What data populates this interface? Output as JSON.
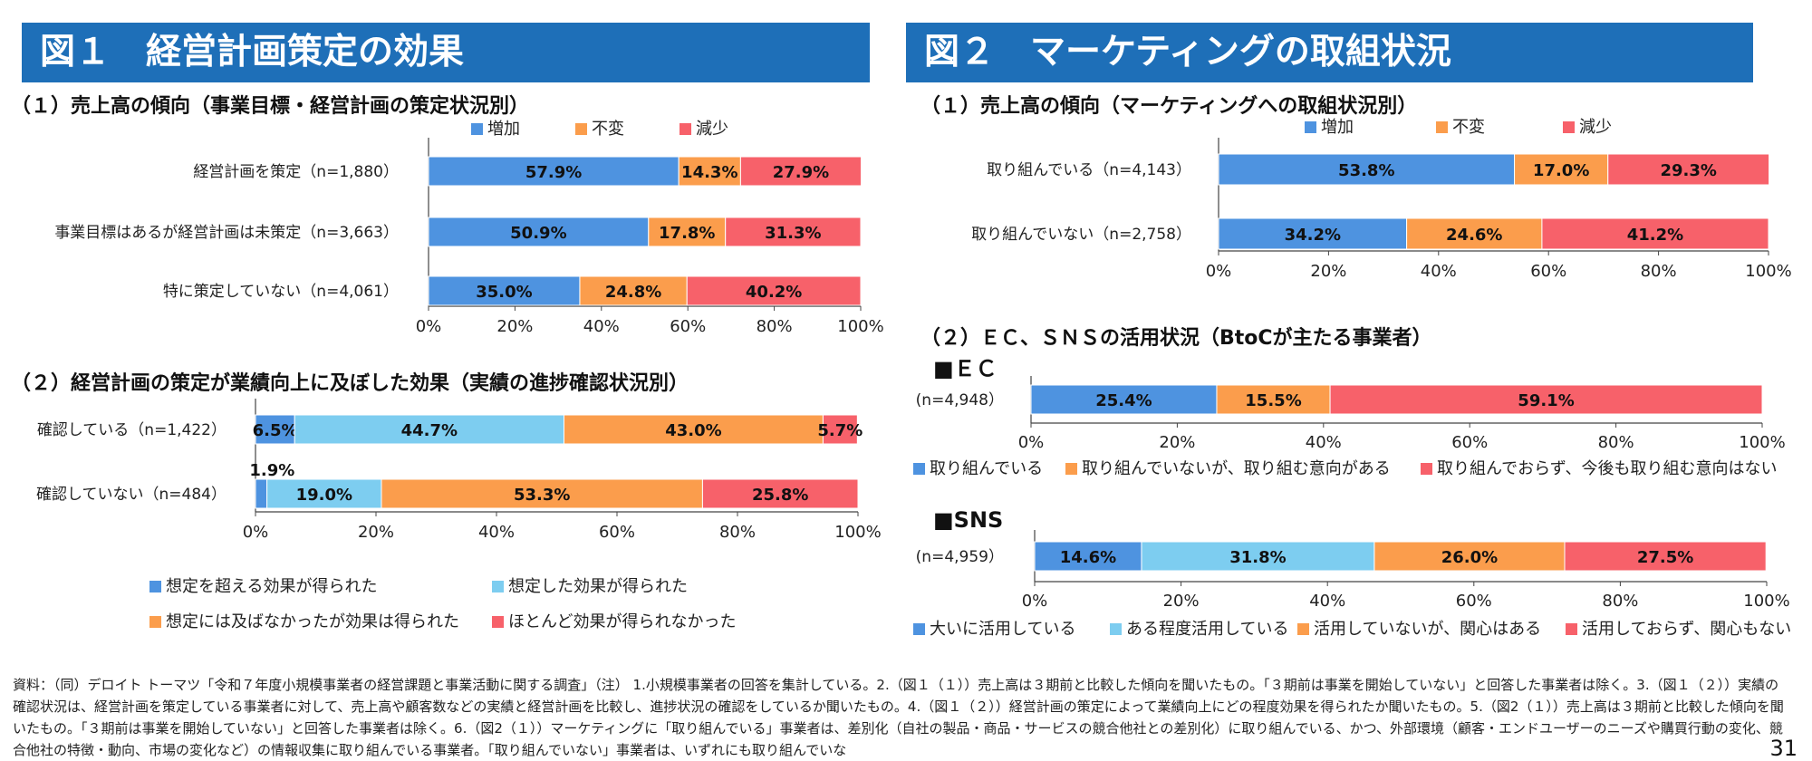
{
  "fig1": {
    "title": "図１　経営計画策定の効果",
    "sub1": "（１）売上高の傾向（事業目標・経営計画の策定状況別）",
    "sub2": "（２）経営計画の策定が業績向上に及ぼした効果（実績の進捗確認状況別）"
  },
  "fig2": {
    "title": "図２　マーケティングの取組状況",
    "sub1": "（１）売上高の傾向（マーケティングへの取組状況別）",
    "sub2": "（２）ＥＣ、ＳＮＳの活用状況（BtoCが主たる事業者）",
    "ec_heading": "■ＥＣ",
    "sns_heading": "■SNS"
  },
  "footer": {
    "text": "資料：（同）デロイト トーマツ「令和７年度小規模事業者の経営課題と事業活動に関する調査」（注） 1.小規模事業者の回答を集計している。2.（図１（１））売上高は３期前と比較した傾向を聞いたもの。「３期前は事業を開始していない」と回答した事業者は除く。3.（図１（２））実績の確認状況は、経営計画を策定している事業者に対して、売上高や顧客数などの実績と経営計画を比較し、進捗状況の確認をしているか聞いたもの。4.（図１（２））経営計画の策定によって業績向上にどの程度効果を得られたか聞いたもの。5.（図2（１））売上高は３期前と比較した傾向を聞いたもの。「３期前は事業を開始していない」と回答した事業者は除く。6.（図2（１））マーケティングに「取り組んでいる」事業者は、差別化（自社の製品・商品・サービスの競合他社との差別化）に取り組んでいる、かつ、外部環境（顧客・エンドユーザーのニーズや購買行動の変化、競合他社の特徴・動向、市場の変化など）の情報収集に取り組んでいる事業者。「取り組んでいない」事業者は、いずれにも取り組んでいな",
    "page": "31"
  },
  "colors": {
    "banner": "#1e6fb8",
    "blue": "#4e93e0",
    "lightblue": "#7dcdf0",
    "orange": "#fb9d4c",
    "red": "#f7616a"
  },
  "chart_data": [
    {
      "id": "fig1-1",
      "type": "bar",
      "orientation": "horizontal-stacked",
      "categories": [
        "経営計画を策定（n=1,880）",
        "事業目標はあるが経営計画は未策定（n=3,663）",
        "特に策定していない（n=4,061）"
      ],
      "series": [
        {
          "name": "増加",
          "color": "#4e93e0",
          "values": [
            57.9,
            50.9,
            35.0
          ]
        },
        {
          "name": "不変",
          "color": "#fb9d4c",
          "values": [
            14.3,
            17.8,
            24.8
          ]
        },
        {
          "name": "減少",
          "color": "#f7616a",
          "values": [
            27.9,
            31.3,
            40.2
          ]
        }
      ],
      "xlim": [
        0,
        100
      ],
      "ticks": [
        "0%",
        "20%",
        "40%",
        "60%",
        "80%",
        "100%"
      ],
      "legend_position": "top"
    },
    {
      "id": "fig1-2",
      "type": "bar",
      "orientation": "horizontal-stacked",
      "categories": [
        "確認している（n=1,422）",
        "確認していない（n=484）"
      ],
      "series": [
        {
          "name": "想定を超える効果が得られた",
          "color": "#4e93e0",
          "values": [
            6.5,
            1.9
          ]
        },
        {
          "name": "想定した効果が得られた",
          "color": "#7dcdf0",
          "values": [
            44.7,
            19.0
          ]
        },
        {
          "name": "想定には及ばなかったが効果は得られた",
          "color": "#fb9d4c",
          "values": [
            43.0,
            53.3
          ]
        },
        {
          "name": "ほとんど効果が得られなかった",
          "color": "#f7616a",
          "values": [
            5.7,
            25.8
          ]
        }
      ],
      "xlim": [
        0,
        100
      ],
      "ticks": [
        "0%",
        "20%",
        "40%",
        "60%",
        "80%",
        "100%"
      ],
      "legend_position": "bottom"
    },
    {
      "id": "fig2-1",
      "type": "bar",
      "orientation": "horizontal-stacked",
      "categories": [
        "取り組んでいる（n=4,143）",
        "取り組んでいない（n=2,758）"
      ],
      "series": [
        {
          "name": "増加",
          "color": "#4e93e0",
          "values": [
            53.8,
            34.2
          ]
        },
        {
          "name": "不変",
          "color": "#fb9d4c",
          "values": [
            17.0,
            24.6
          ]
        },
        {
          "name": "減少",
          "color": "#f7616a",
          "values": [
            29.3,
            41.2
          ]
        }
      ],
      "xlim": [
        0,
        100
      ],
      "ticks": [
        "0%",
        "20%",
        "40%",
        "60%",
        "80%",
        "100%"
      ],
      "legend_position": "top"
    },
    {
      "id": "fig2-2-ec",
      "type": "bar",
      "orientation": "horizontal-stacked",
      "categories": [
        "(n=4,948）"
      ],
      "series": [
        {
          "name": "取り組んでいる",
          "color": "#4e93e0",
          "values": [
            25.4
          ]
        },
        {
          "name": "取り組んでいないが、取り組む意向がある",
          "color": "#fb9d4c",
          "values": [
            15.5
          ]
        },
        {
          "name": "取り組んでおらず、今後も取り組む意向はない",
          "color": "#f7616a",
          "values": [
            59.1
          ]
        }
      ],
      "xlim": [
        0,
        100
      ],
      "ticks": [
        "0%",
        "20%",
        "40%",
        "60%",
        "80%",
        "100%"
      ],
      "legend_position": "bottom"
    },
    {
      "id": "fig2-2-sns",
      "type": "bar",
      "orientation": "horizontal-stacked",
      "categories": [
        "(n=4,959）"
      ],
      "series": [
        {
          "name": "大いに活用している",
          "color": "#4e93e0",
          "values": [
            14.6
          ]
        },
        {
          "name": "ある程度活用している",
          "color": "#7dcdf0",
          "values": [
            31.8
          ]
        },
        {
          "name": "活用していないが、関心はある",
          "color": "#fb9d4c",
          "values": [
            26.0
          ]
        },
        {
          "name": "活用しておらず、関心もない",
          "color": "#f7616a",
          "values": [
            27.5
          ]
        }
      ],
      "xlim": [
        0,
        100
      ],
      "ticks": [
        "0%",
        "20%",
        "40%",
        "60%",
        "80%",
        "100%"
      ],
      "legend_position": "bottom"
    }
  ]
}
